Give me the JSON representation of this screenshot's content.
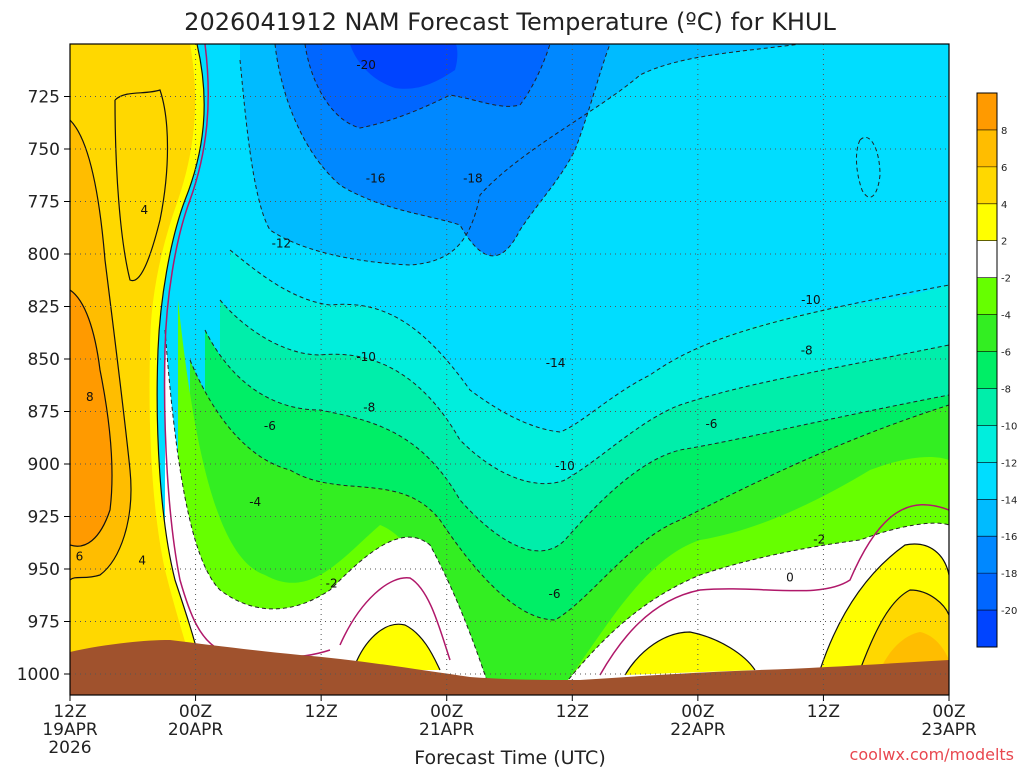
{
  "chart_data": {
    "type": "heatmap",
    "title": "2026041912 NAM Forecast Temperature (ºC) for KHUL",
    "xlabel": "Forecast Time (UTC)",
    "watermark": "coolwx.com/modelts",
    "x_ticks": [
      {
        "hour": 0,
        "line1": "12Z",
        "line2": "19APR",
        "line3": "2026"
      },
      {
        "hour": 12,
        "line1": "00Z",
        "line2": "20APR",
        "line3": ""
      },
      {
        "hour": 24,
        "line1": "12Z",
        "line2": "",
        "line3": ""
      },
      {
        "hour": 36,
        "line1": "00Z",
        "line2": "21APR",
        "line3": ""
      },
      {
        "hour": 48,
        "line1": "12Z",
        "line2": "",
        "line3": ""
      },
      {
        "hour": 60,
        "line1": "00Z",
        "line2": "22APR",
        "line3": ""
      },
      {
        "hour": 72,
        "line1": "12Z",
        "line2": "",
        "line3": ""
      },
      {
        "hour": 84,
        "line1": "00Z",
        "line2": "23APR",
        "line3": ""
      }
    ],
    "y_ticks": [
      "725",
      "750",
      "775",
      "800",
      "825",
      "850",
      "875",
      "900",
      "925",
      "950",
      "975",
      "1000"
    ],
    "y_tick_values": [
      725,
      750,
      775,
      800,
      825,
      850,
      875,
      900,
      925,
      950,
      975,
      1000
    ],
    "ylim": [
      700,
      1010
    ],
    "xlim": [
      0,
      84
    ],
    "colorbar": {
      "labels": [
        "8",
        "6",
        "4",
        "2",
        "-2",
        "-4",
        "-6",
        "-8",
        "-10",
        "-12",
        "-14",
        "-16",
        "-18",
        "-20"
      ],
      "colors": [
        "#ff9a00",
        "#ffbd00",
        "#ffd800",
        "#ffff00",
        "#ffffff",
        "#66ff00",
        "#33ee22",
        "#00ee66",
        "#00eeaa",
        "#00eedd",
        "#00ddff",
        "#00bbff",
        "#0088ff",
        "#0066ff",
        "#0044ff"
      ]
    },
    "grid": true,
    "contour_labels": [
      {
        "text": "-20",
        "x": 28.3,
        "y": 710
      },
      {
        "text": "-16",
        "x": 29.2,
        "y": 764
      },
      {
        "text": "-18",
        "x": 38.5,
        "y": 764
      },
      {
        "text": "-12",
        "x": 20.2,
        "y": 795
      },
      {
        "text": "-10",
        "x": 70.8,
        "y": 822
      },
      {
        "text": "-10",
        "x": 28.3,
        "y": 849
      },
      {
        "text": "-14",
        "x": 46.4,
        "y": 852
      },
      {
        "text": "-8",
        "x": 70.4,
        "y": 846
      },
      {
        "text": "-8",
        "x": 28.6,
        "y": 873
      },
      {
        "text": "-6",
        "x": 19.1,
        "y": 882
      },
      {
        "text": "-6",
        "x": 61.3,
        "y": 881
      },
      {
        "text": "-10",
        "x": 47.3,
        "y": 901
      },
      {
        "text": "-4",
        "x": 17.7,
        "y": 918
      },
      {
        "text": "-2",
        "x": 25.0,
        "y": 957
      },
      {
        "text": "-2",
        "x": 71.6,
        "y": 936
      },
      {
        "text": "0",
        "x": 68.8,
        "y": 954
      },
      {
        "text": "-6",
        "x": 46.3,
        "y": 962
      },
      {
        "text": "4",
        "x": 7.1,
        "y": 779
      },
      {
        "text": "8",
        "x": 1.9,
        "y": 868
      },
      {
        "text": "6",
        "x": 0.9,
        "y": 944
      },
      {
        "text": "4",
        "x": 6.9,
        "y": 946
      }
    ]
  }
}
